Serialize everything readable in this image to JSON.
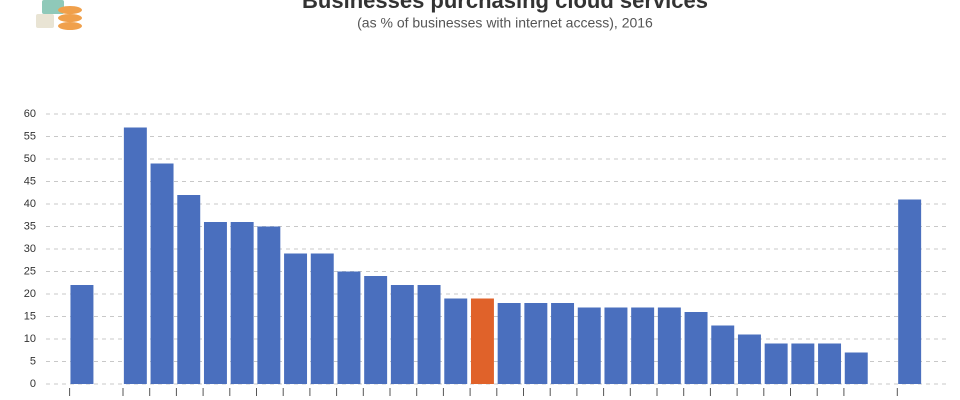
{
  "chart_data": {
    "type": "bar",
    "title": "Businesses purchasing cloud services",
    "subtitle": "(as % of businesses with internet access), 2016",
    "categories": [
      null,
      null,
      null,
      null,
      null,
      null,
      null,
      null,
      null,
      null,
      null,
      null,
      null,
      null,
      null,
      null,
      null,
      null,
      null,
      null,
      null,
      null,
      null,
      null,
      null,
      null,
      null,
      null,
      null,
      null,
      null,
      null
    ],
    "values": [
      22,
      null,
      57,
      49,
      42,
      36,
      36,
      35,
      29,
      29,
      25,
      24,
      22,
      22,
      19,
      19,
      18,
      18,
      18,
      17,
      17,
      17,
      17,
      16,
      13,
      11,
      9,
      9,
      9,
      7,
      null,
      41
    ],
    "colors": [
      "#4a6fbe",
      null,
      "#4a6fbe",
      "#4a6fbe",
      "#4a6fbe",
      "#4a6fbe",
      "#4a6fbe",
      "#4a6fbe",
      "#4a6fbe",
      "#4a6fbe",
      "#4a6fbe",
      "#4a6fbe",
      "#4a6fbe",
      "#4a6fbe",
      "#4a6fbe",
      "#e0622a",
      "#4a6fbe",
      "#4a6fbe",
      "#4a6fbe",
      "#4a6fbe",
      "#4a6fbe",
      "#4a6fbe",
      "#4a6fbe",
      "#4a6fbe",
      "#4a6fbe",
      "#4a6fbe",
      "#4a6fbe",
      "#4a6fbe",
      "#4a6fbe",
      "#4a6fbe",
      null,
      "#4a6fbe"
    ],
    "ylim": [
      0,
      60
    ],
    "yticks": [
      0,
      5,
      10,
      15,
      20,
      25,
      30,
      35,
      40,
      45,
      50,
      55,
      60
    ],
    "grid": true
  }
}
